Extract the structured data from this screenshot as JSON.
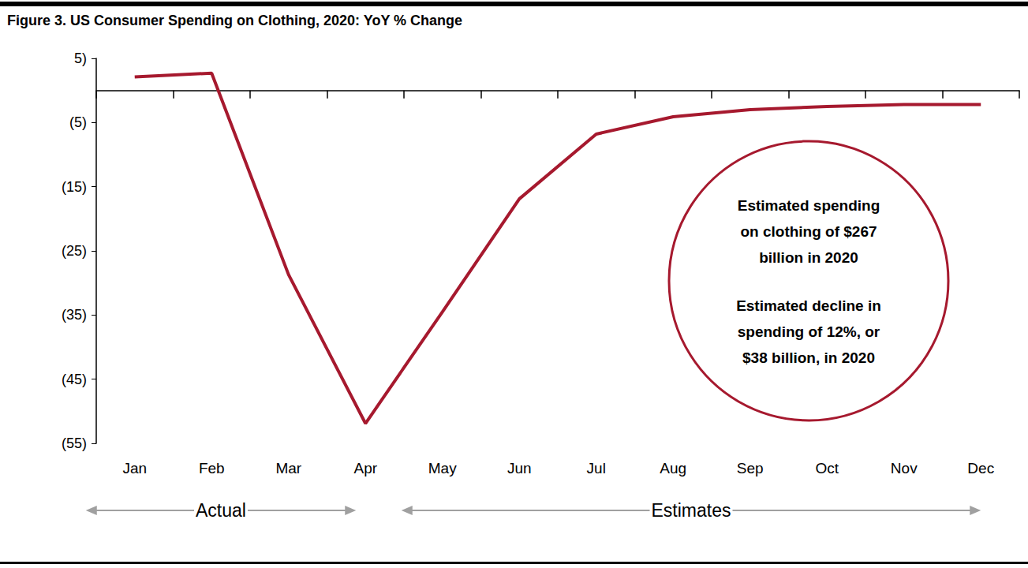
{
  "chart_data": {
    "type": "line",
    "title": "Figure 3. US Consumer Spending on Clothing, 2020: YoY % Change",
    "categories": [
      "Jan",
      "Feb",
      "Mar",
      "Apr",
      "May",
      "Jun",
      "Jul",
      "Aug",
      "Sep",
      "Oct",
      "Nov",
      "Dec"
    ],
    "values": [
      2.1,
      2.7,
      -28.7,
      -51.9,
      -34.5,
      -16.9,
      -6.8,
      -4.1,
      -3.0,
      -2.5,
      -2.2,
      -2.2
    ],
    "color": "#a6192e",
    "ylim": [
      -55,
      5
    ],
    "yticks": [
      {
        "value": 5,
        "label": "5)"
      },
      {
        "value": -5,
        "label": "(5)"
      },
      {
        "value": -15,
        "label": "(15)"
      },
      {
        "value": -25,
        "label": "(25)"
      },
      {
        "value": -35,
        "label": "(35)"
      },
      {
        "value": -45,
        "label": "(45)"
      },
      {
        "value": -55,
        "label": "(55)"
      }
    ],
    "grid": false,
    "annotations": [
      "Estimated spending\non clothing of $267\nbillion in 2020",
      "Estimated decline in\nspending of 12%, or\n$38 billion, in 2020"
    ],
    "periods": [
      {
        "text": "Actual",
        "from": "Jan",
        "to": "Apr"
      },
      {
        "text": "Estimates",
        "from": "May",
        "to": "Dec"
      }
    ]
  }
}
